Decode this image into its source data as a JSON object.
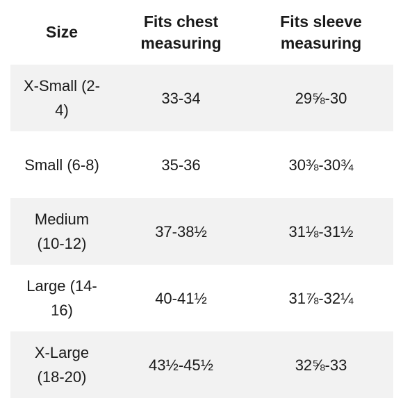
{
  "header": {
    "size": "Size",
    "chest": "Fits chest measuring",
    "sleeve": "Fits sleeve measuring"
  },
  "rows": [
    {
      "size": "X-Small (2-4)",
      "chest": "33-34",
      "sleeve": "29⅝-30"
    },
    {
      "size": "Small (6-8)",
      "chest": "35-36",
      "sleeve": "30⅜-30¾"
    },
    {
      "size": "Medium (10-12)",
      "chest": "37-38½",
      "sleeve": "31⅛-31½"
    },
    {
      "size": "Large (14-16)",
      "chest": "40-41½",
      "sleeve": "31⅞-32¼"
    },
    {
      "size": "X-Large (18-20)",
      "chest": "43½-45½",
      "sleeve": "32⅝-33"
    }
  ],
  "colors": {
    "shaded_row": "#f2f2f2",
    "text": "#1a1a1a"
  }
}
